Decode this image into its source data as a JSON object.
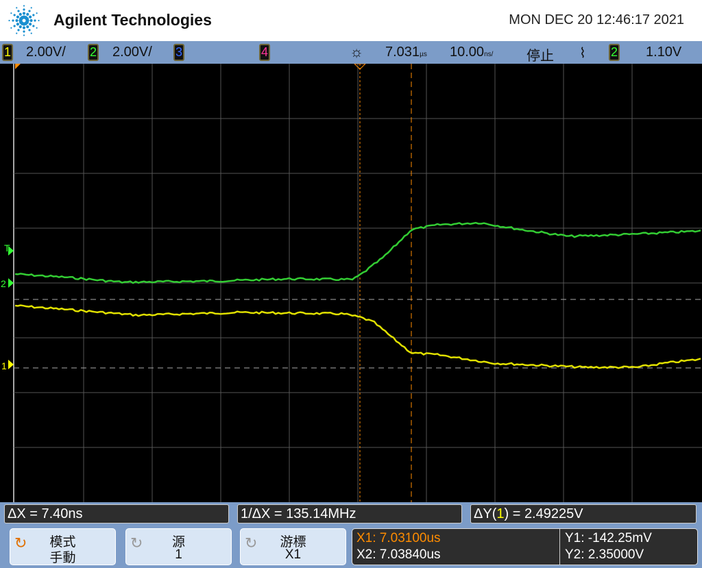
{
  "header": {
    "brand": "Agilent Technologies",
    "datetime": "MON DEC 20 12:46:17 2021"
  },
  "status": {
    "ch1": {
      "num": "1",
      "scale": "2.00V/",
      "color": "#ffff00"
    },
    "ch2": {
      "num": "2",
      "scale": "2.00V/",
      "color": "#33ff33"
    },
    "ch3": {
      "num": "3",
      "color": "#3366ff"
    },
    "ch4": {
      "num": "4",
      "color": "#ff3399"
    },
    "delay": "7.031",
    "delay_unit": "µs",
    "timebase": "10.00",
    "timebase_unit": "ns/",
    "run_state": "停止",
    "trigger_slope_icon": "falling-edge-icon",
    "trigger_source": "2",
    "trigger_level": "1.10V"
  },
  "markers": {
    "trigger": "T",
    "ch2": "2",
    "ch1": "1"
  },
  "measurements": {
    "delta_x": "ΔX = 7.40ns",
    "inv_delta_x": "1/ΔX = 135.14MHz",
    "delta_y_prefix": "ΔY(",
    "delta_y_ch": "1",
    "delta_y_suffix": ") = 2.49225V"
  },
  "softkeys": [
    {
      "label1": "模式",
      "label2": "手動",
      "icon": "rotate-knob-icon",
      "active": true
    },
    {
      "label1": "源",
      "label2": "1",
      "icon": "rotate-knob-icon",
      "active": false
    },
    {
      "label1": "游標",
      "label2": "X1",
      "icon": "rotate-knob-icon",
      "active": false
    }
  ],
  "cursors": {
    "x1": "X1: 7.03100us",
    "x2": "X2: 7.03840us",
    "y1": "Y1: -142.25mV",
    "y2": "Y2: 2.35000V"
  },
  "colors": {
    "ch1": "#e0e000",
    "ch2": "#33cc33",
    "cursor": "#ff8c00",
    "grid": "#555555"
  }
}
